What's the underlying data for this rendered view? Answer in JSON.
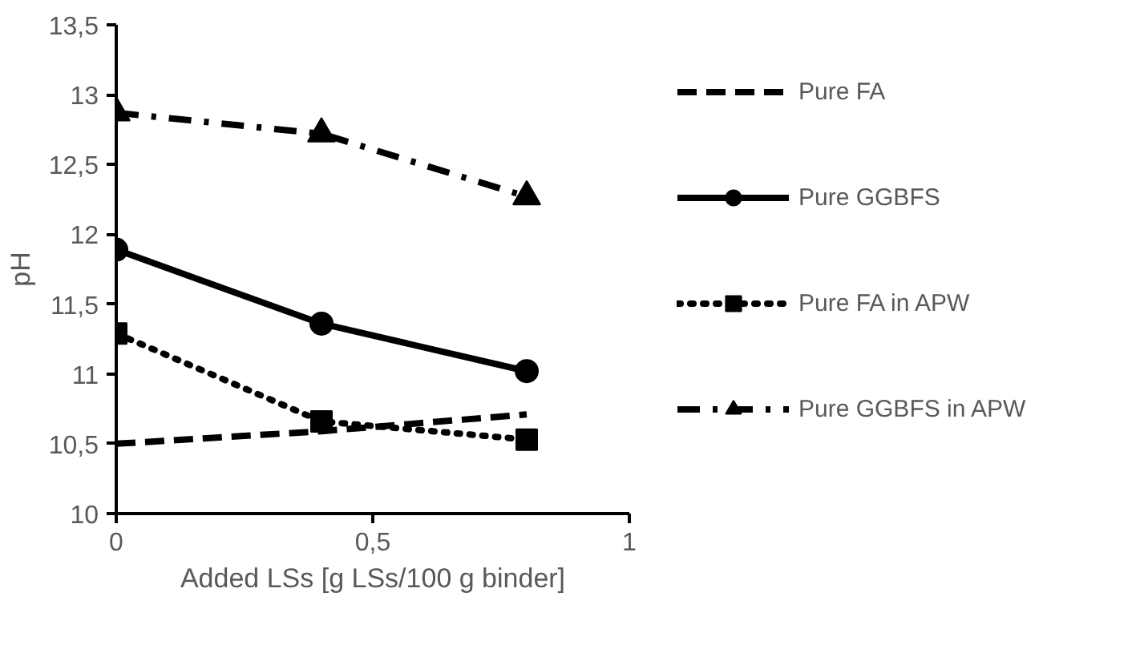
{
  "chart_data": {
    "type": "line",
    "xlabel": "Added LSs [g LSs/100 g binder]",
    "ylabel": "pH",
    "x": [
      0,
      0.4,
      0.8
    ],
    "series": [
      {
        "name": "Pure FA",
        "color": "#000000",
        "values": [
          10.5,
          10.59,
          10.71
        ],
        "line_style": "dashed",
        "marker": "none"
      },
      {
        "name": "Pure GGBFS",
        "color": "#000000",
        "values": [
          11.89,
          11.36,
          11.02
        ],
        "line_style": "solid",
        "marker": "circle"
      },
      {
        "name": "Pure FA in APW",
        "color": "#000000",
        "values": [
          11.29,
          10.66,
          10.53
        ],
        "line_style": "dotted",
        "marker": "square"
      },
      {
        "name": "Pure GGBFS in APW",
        "color": "#000000",
        "values": [
          12.87,
          12.72,
          12.27
        ],
        "line_style": "dashdot",
        "marker": "triangle"
      }
    ],
    "xlim": [
      0,
      1
    ],
    "ylim": [
      10,
      13.5
    ],
    "xticks": [
      0,
      {
        "value": 0.5,
        "label": "0,5"
      },
      1
    ],
    "yticks": [
      10,
      {
        "value": 10.5,
        "label": "10,5"
      },
      11,
      {
        "value": 11.5,
        "label": "11,5"
      },
      12,
      {
        "value": 12.5,
        "label": "12,5"
      },
      13,
      {
        "value": 13.5,
        "label": "13,5"
      }
    ],
    "grid": false,
    "legend": "right"
  }
}
